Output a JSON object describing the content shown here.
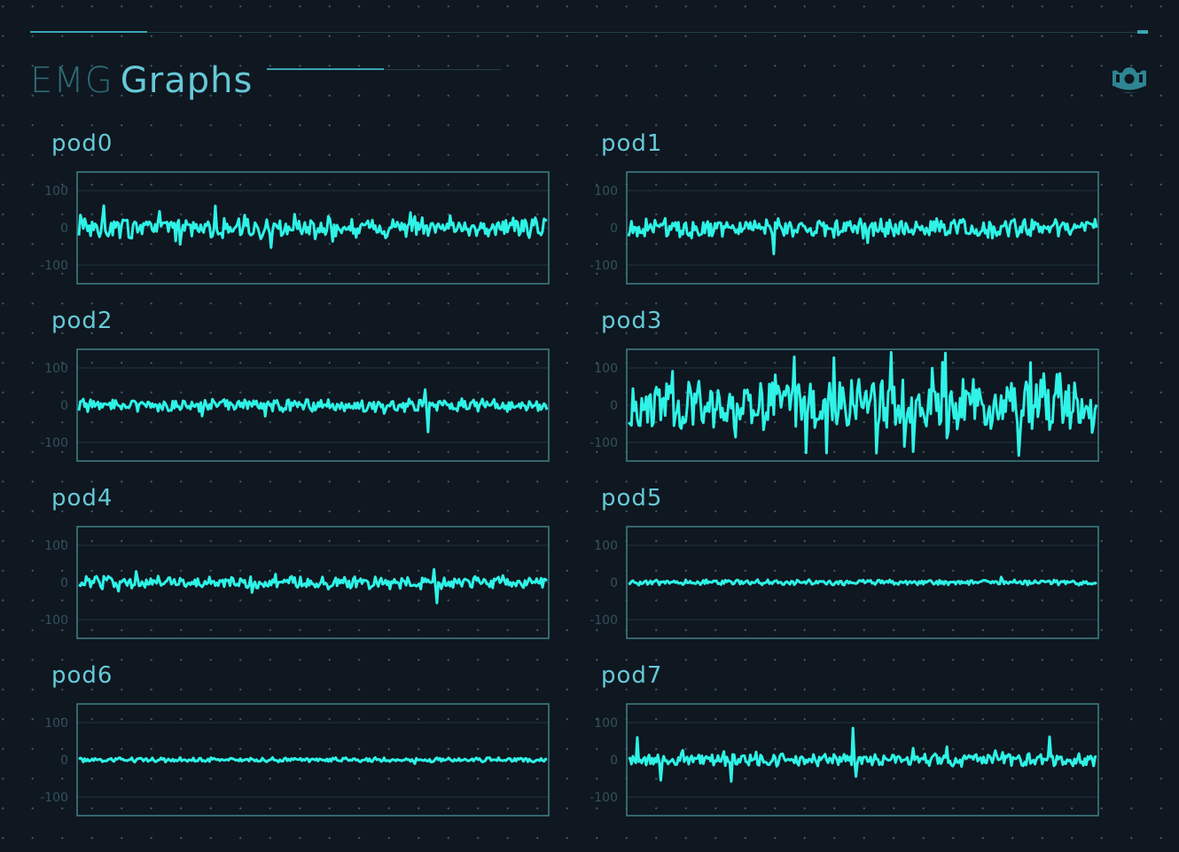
{
  "header": {
    "title_part1": "EMG",
    "title_part2": "Graphs",
    "brand_icon": "myo-armband-icon"
  },
  "colors": {
    "background": "#0f1720",
    "accent": "#3aa6b5",
    "signal": "#2ef3e6",
    "frame": "#3d7b80",
    "grid": "#1e3038",
    "label": "#66c9d7"
  },
  "chart_data": [
    {
      "type": "line",
      "title": "pod0",
      "ylim": [
        -150,
        150
      ],
      "yticks": [
        100,
        0,
        -100
      ],
      "grid": true,
      "amplitude": 22,
      "spike_rate": 0.1,
      "spike_amp": 45,
      "seed": 11,
      "spikes": []
    },
    {
      "type": "line",
      "title": "pod1",
      "ylim": [
        -150,
        150
      ],
      "yticks": [
        100,
        0,
        -100
      ],
      "grid": true,
      "amplitude": 20,
      "spike_rate": 0.08,
      "spike_amp": 45,
      "seed": 23,
      "spikes": [
        [
          0.31,
          75
        ],
        [
          0.31,
          -70
        ]
      ]
    },
    {
      "type": "line",
      "title": "pod2",
      "ylim": [
        -150,
        150
      ],
      "yticks": [
        100,
        0,
        -100
      ],
      "grid": true,
      "amplitude": 14,
      "spike_rate": 0.04,
      "spike_amp": 25,
      "seed": 37,
      "spikes": [
        [
          0.74,
          42
        ],
        [
          0.745,
          -72
        ]
      ]
    },
    {
      "type": "line",
      "title": "pod3",
      "ylim": [
        -150,
        150
      ],
      "yticks": [
        100,
        0,
        -100
      ],
      "grid": true,
      "amplitude": 55,
      "spike_rate": 0.18,
      "spike_amp": 110,
      "seed": 41,
      "spikes": []
    },
    {
      "type": "line",
      "title": "pod4",
      "ylim": [
        -150,
        150
      ],
      "yticks": [
        100,
        0,
        -100
      ],
      "grid": true,
      "amplitude": 14,
      "spike_rate": 0.04,
      "spike_amp": 22,
      "seed": 53,
      "spikes": [
        [
          0.76,
          35
        ],
        [
          0.765,
          -55
        ]
      ]
    },
    {
      "type": "line",
      "title": "pod5",
      "ylim": [
        -150,
        150
      ],
      "yticks": [
        100,
        0,
        -100
      ],
      "grid": true,
      "amplitude": 6,
      "spike_rate": 0.02,
      "spike_amp": 10,
      "seed": 67,
      "spikes": []
    },
    {
      "type": "line",
      "title": "pod6",
      "ylim": [
        -150,
        150
      ],
      "yticks": [
        100,
        0,
        -100
      ],
      "grid": true,
      "amplitude": 5,
      "spike_rate": 0.02,
      "spike_amp": 8,
      "seed": 71,
      "spikes": []
    },
    {
      "type": "line",
      "title": "pod7",
      "ylim": [
        -150,
        150
      ],
      "yticks": [
        100,
        0,
        -100
      ],
      "grid": true,
      "amplitude": 14,
      "spike_rate": 0.05,
      "spike_amp": 40,
      "seed": 83,
      "spikes": [
        [
          0.48,
          85
        ],
        [
          0.485,
          -45
        ],
        [
          0.02,
          60
        ],
        [
          0.07,
          -55
        ],
        [
          0.22,
          -58
        ],
        [
          0.9,
          62
        ]
      ]
    }
  ]
}
